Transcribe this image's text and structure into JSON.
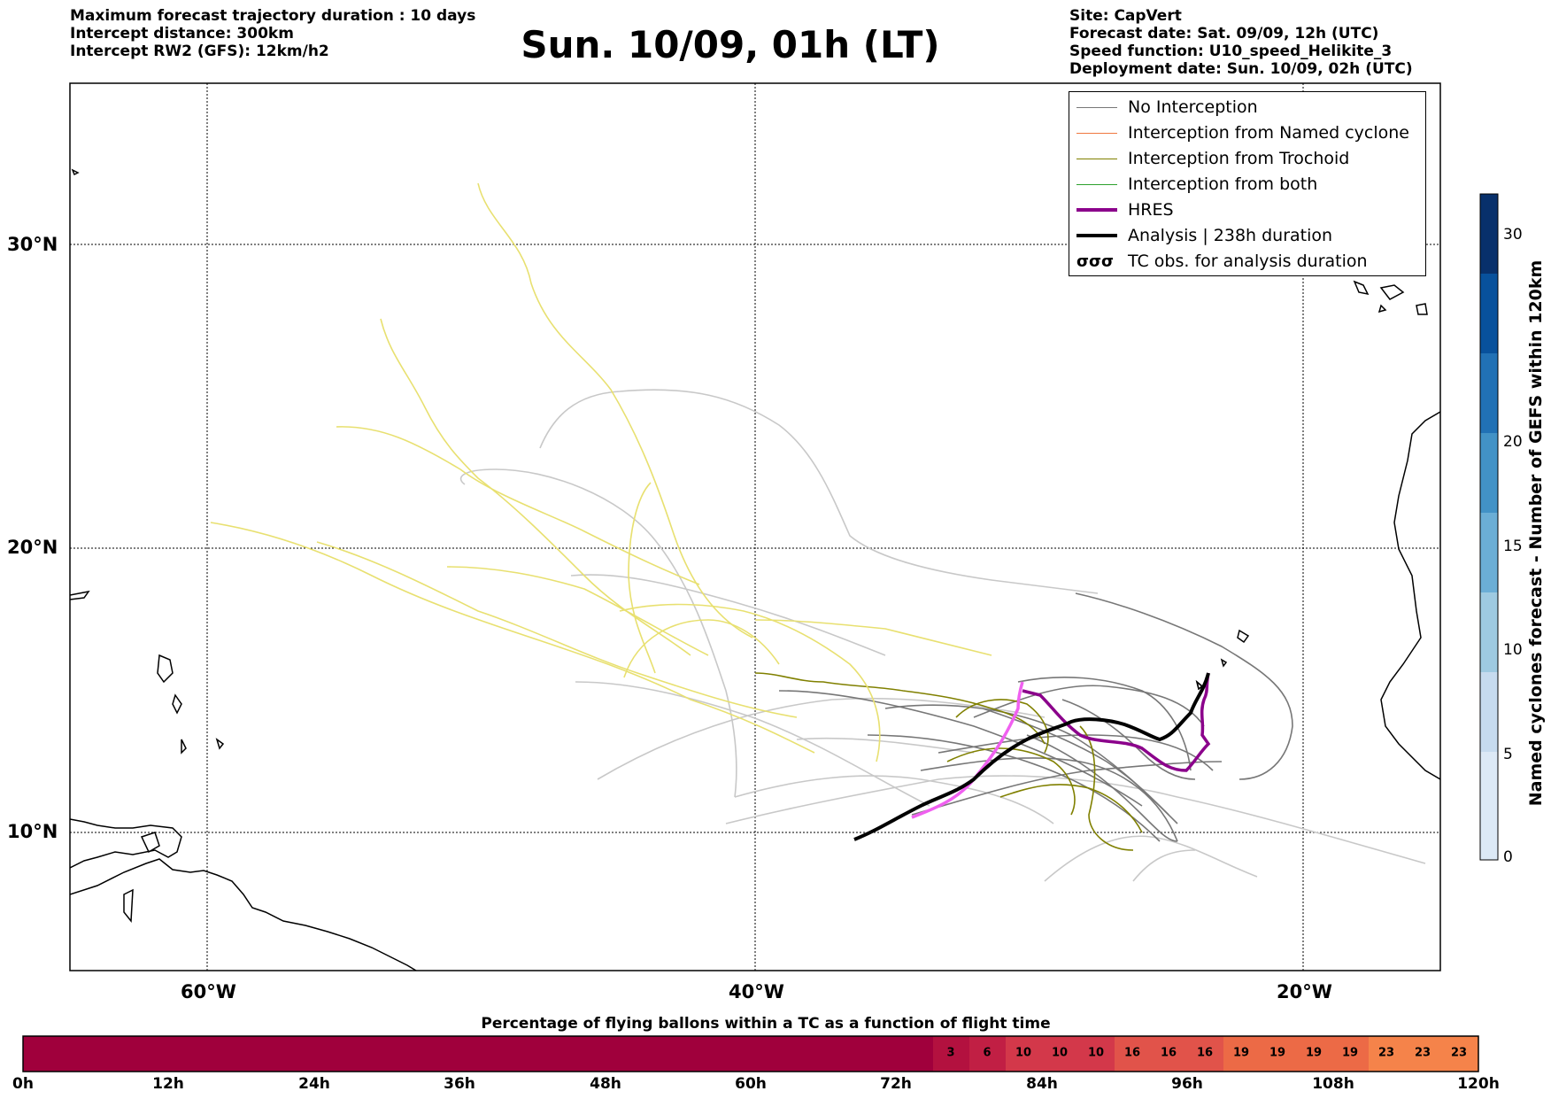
{
  "header": {
    "left_lines": [
      "Maximum forecast trajectory duration : 10 days",
      "Intercept distance: 300km",
      "Intercept RW2 (GFS):  12km/h2"
    ],
    "title": "Sun. 10/09, 01h (LT)",
    "right_lines": [
      "Site: CapVert",
      "Forecast date: Sat. 09/09, 12h (UTC)",
      "Speed function: U10_speed_Helikite_3",
      "Deployment date: Sun. 10/09, 02h (UTC)"
    ]
  },
  "map": {
    "lat_ticks": [
      "30°N",
      "20°N",
      "10°N"
    ],
    "lon_ticks": [
      "60°W",
      "40°W",
      "20°W"
    ],
    "grid": true,
    "colors": {
      "no_interception": "#777777",
      "no_interception_light": "#c8c8c8",
      "named_cyclone": "#f07840",
      "trochoid": "#808000",
      "both": "#2ca02c",
      "hres": "#8b008b",
      "hres_early": "#f060f0",
      "analysis": "#000000",
      "yellow_tracks": "#e8e070"
    }
  },
  "legend": {
    "items": [
      {
        "label": "No Interception",
        "color": "#777777"
      },
      {
        "label": "Interception from Named cyclone",
        "color": "#f07840"
      },
      {
        "label": "Interception from Trochoid",
        "color": "#808000"
      },
      {
        "label": "Interception from both",
        "color": "#2ca02c"
      },
      {
        "label": "HRES",
        "color": "#8b008b"
      },
      {
        "label": "Analysis | 238h duration",
        "color": "#000000"
      },
      {
        "label": "TC obs. for analysis duration",
        "symbol": "cyclone-symbol-icon"
      }
    ]
  },
  "colorbar": {
    "title": "Named cyclones forecast - Number of GEFS within 120km",
    "ticks": [
      "0",
      "5",
      "10",
      "15",
      "20",
      "30"
    ],
    "colors": [
      "#dce9f6",
      "#c6dbef",
      "#9ecae1",
      "#6baed6",
      "#4292c6",
      "#2171b5",
      "#08519c",
      "#08306b"
    ]
  },
  "bottom_bar": {
    "title": "Percentage of flying ballons within a TC as a function of flight time",
    "ticks": [
      "0h",
      "12h",
      "24h",
      "36h",
      "48h",
      "60h",
      "72h",
      "84h",
      "96h",
      "108h",
      "120h"
    ],
    "values": [
      "3",
      "6",
      "10",
      "10",
      "10",
      "16",
      "16",
      "16",
      "19",
      "19",
      "19",
      "19",
      "23",
      "23",
      "23"
    ],
    "base_color": "#a0003c",
    "value_colors": {
      "3": "#b3113f",
      "6": "#c11f44",
      "10": "#d3384a",
      "16": "#e1534a",
      "19": "#ec6a46",
      "23": "#f5834a"
    }
  }
}
